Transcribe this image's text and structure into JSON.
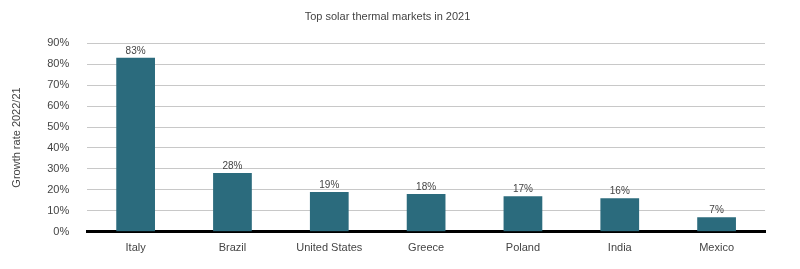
{
  "chart_data": {
    "type": "bar",
    "title": "Top solar thermal markets in 2021",
    "y_label": "Growth rate 2022/21",
    "categories": [
      "Italy",
      "Brazil",
      "United States",
      "Greece",
      "Poland",
      "India",
      "Mexico"
    ],
    "values": [
      83,
      28,
      19,
      18,
      17,
      16,
      7
    ],
    "value_labels": [
      "83%",
      "28%",
      "19%",
      "18%",
      "17%",
      "16%",
      "7%"
    ],
    "color": "#2b6b7d",
    "ylim": [
      0,
      90
    ],
    "yticks": [
      {
        "value": 0,
        "label": "0%"
      },
      {
        "value": 10,
        "label": "10%"
      },
      {
        "value": 20,
        "label": "20%"
      },
      {
        "value": 30,
        "label": "30%"
      },
      {
        "value": 40,
        "label": "40%"
      },
      {
        "value": 50,
        "label": "50%"
      },
      {
        "value": 60,
        "label": "60%"
      },
      {
        "value": 70,
        "label": "70%"
      },
      {
        "value": 80,
        "label": "80%"
      },
      {
        "value": 90,
        "label": "90%"
      }
    ],
    "grid": true,
    "data_labels": true
  }
}
